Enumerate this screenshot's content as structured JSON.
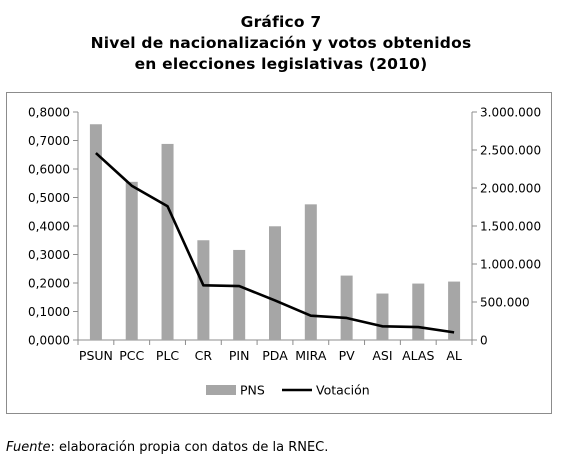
{
  "title": {
    "line1": "Gráfico 7",
    "line2": "Nivel de nacionalización y votos obtenidos",
    "line3": "en elecciones legislativas (2010)"
  },
  "source": {
    "label": "Fuente",
    "text": ": elaboración propia con datos de la RNEC."
  },
  "chart_data": {
    "type": "bar",
    "categories": [
      "PSUN",
      "PCC",
      "PLC",
      "CR",
      "PIN",
      "PDA",
      "MIRA",
      "PV",
      "ASI",
      "ALAS",
      "AL"
    ],
    "series": [
      {
        "name": "PNS",
        "kind": "bar",
        "axis": "left",
        "values": [
          0.757,
          0.555,
          0.688,
          0.35,
          0.316,
          0.399,
          0.476,
          0.226,
          0.163,
          0.198,
          0.205
        ]
      },
      {
        "name": "Votación",
        "kind": "line",
        "axis": "right",
        "values": [
          2460000,
          2030000,
          1760000,
          720000,
          710000,
          520000,
          320000,
          290000,
          180000,
          170000,
          100000
        ]
      }
    ],
    "yaxis_left": {
      "min": 0,
      "max": 0.8,
      "ticks": [
        "0,0000",
        "0,1000",
        "0,2000",
        "0,3000",
        "0,4000",
        "0,5000",
        "0,6000",
        "0,7000",
        "0,8000"
      ]
    },
    "yaxis_right": {
      "min": 0,
      "max": 3000000,
      "ticks": [
        "0",
        "500.000",
        "1.000.000",
        "1.500.000",
        "2.000.000",
        "2.500.000",
        "3.000.000"
      ]
    },
    "colors": {
      "bar": "#a6a6a6",
      "line": "#000000",
      "axis": "#8c8c8c"
    },
    "grid": false,
    "legend": {
      "position": "bottom",
      "entries": [
        "PNS",
        "Votación"
      ]
    }
  }
}
